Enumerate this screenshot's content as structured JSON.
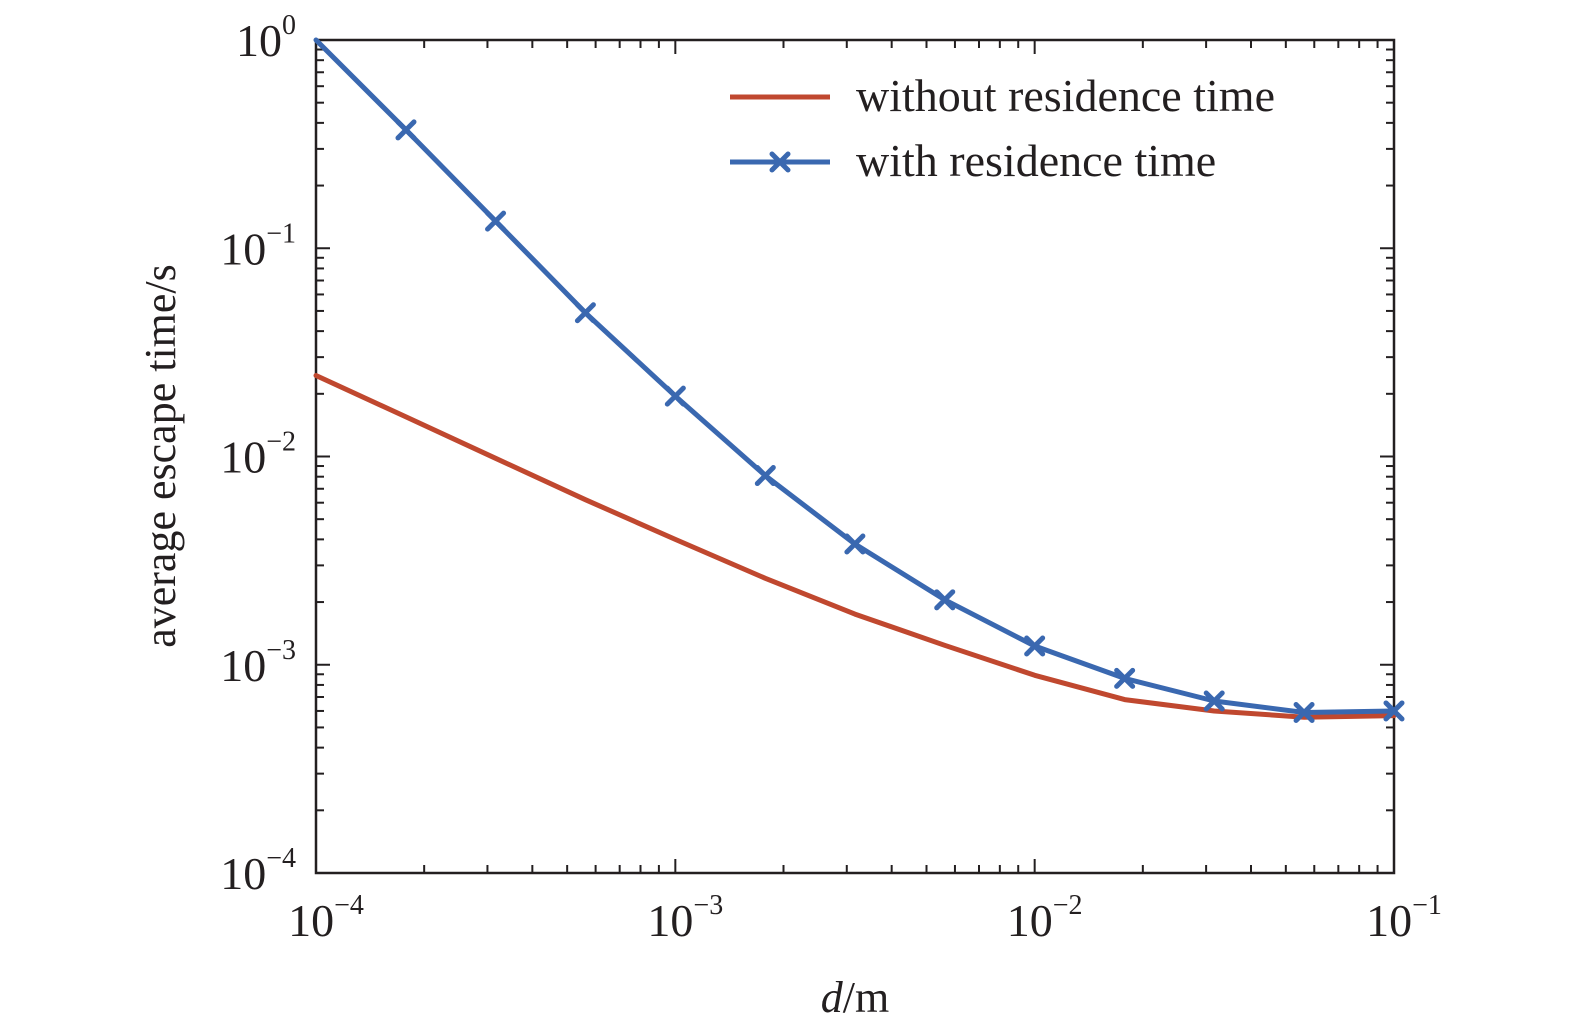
{
  "chart_data": {
    "type": "line",
    "xscale": "log",
    "yscale": "log",
    "xlim": [
      0.0001,
      0.1
    ],
    "ylim": [
      0.0001,
      1
    ],
    "xticks": [
      {
        "base": "10",
        "exp": "−4"
      },
      {
        "base": "10",
        "exp": "−3"
      },
      {
        "base": "10",
        "exp": "−2"
      },
      {
        "base": "10",
        "exp": "−1"
      }
    ],
    "yticks": [
      {
        "base": "10",
        "exp": "−4"
      },
      {
        "base": "10",
        "exp": "−3"
      },
      {
        "base": "10",
        "exp": "−2"
      },
      {
        "base": "10",
        "exp": "−1"
      },
      {
        "base": "10",
        "exp": "0"
      }
    ],
    "xlabel_italic": "d",
    "xlabel_rest": "/m",
    "ylabel": "average escape time/s",
    "legend_position": "top-right",
    "grid": false,
    "series": [
      {
        "name": "without residence time",
        "color": "#c0482f",
        "marker": "none",
        "x": [
          0.0001,
          0.000178,
          0.000316,
          0.000562,
          0.001,
          0.00178,
          0.00316,
          0.00562,
          0.01,
          0.0178,
          0.0316,
          0.0562,
          0.1
        ],
        "y": [
          0.0245,
          0.0155,
          0.0098,
          0.0062,
          0.004,
          0.0026,
          0.00175,
          0.00124,
          0.00089,
          0.00068,
          0.0006,
          0.00056,
          0.00057
        ]
      },
      {
        "name": "with residence time",
        "color": "#3a68b0",
        "marker": "x",
        "x": [
          0.0001,
          0.000178,
          0.000316,
          0.000562,
          0.001,
          0.00178,
          0.00316,
          0.00562,
          0.01,
          0.0178,
          0.0316,
          0.0562,
          0.1
        ],
        "y": [
          1.0,
          0.37,
          0.135,
          0.049,
          0.0195,
          0.0081,
          0.0038,
          0.00205,
          0.00123,
          0.00086,
          0.00067,
          0.00059,
          0.0006
        ]
      }
    ]
  }
}
